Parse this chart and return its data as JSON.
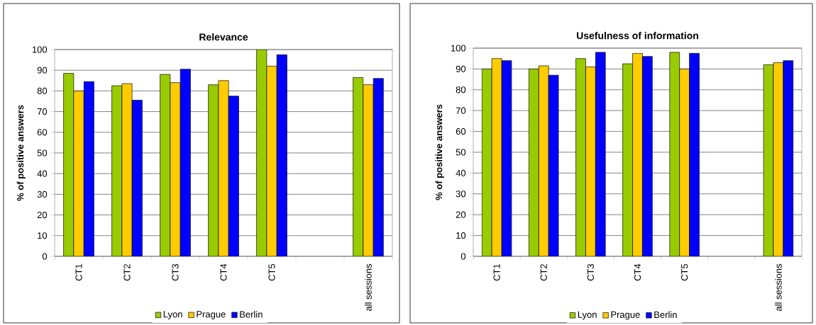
{
  "chart_data": [
    {
      "type": "bar",
      "title": "Relevance",
      "ylabel": "% of positive answers",
      "categories": [
        "CT1",
        "CT2",
        "CT3",
        "CT4",
        "CT5",
        null,
        "all sessions"
      ],
      "series": [
        {
          "name": "Lyon",
          "color": "#99cc00",
          "values": [
            88.5,
            82.5,
            88,
            83,
            100,
            null,
            86.5
          ]
        },
        {
          "name": "Prague",
          "color": "#ffcc00",
          "values": [
            80,
            83.5,
            84,
            85,
            92,
            null,
            83
          ]
        },
        {
          "name": "Berlin",
          "color": "#0000ff",
          "values": [
            84.5,
            75.5,
            90.5,
            77.5,
            97.5,
            null,
            86
          ]
        }
      ],
      "ylim": [
        0,
        100
      ],
      "yticks": [
        0,
        10,
        20,
        30,
        40,
        50,
        60,
        70,
        80,
        90,
        100
      ],
      "grid": "y",
      "legend": "bottom"
    },
    {
      "type": "bar",
      "title": "Usefulness of information",
      "ylabel": "% of positive answers",
      "categories": [
        "CT1",
        "CT2",
        "CT3",
        "CT4",
        "CT5",
        null,
        "all sessions"
      ],
      "series": [
        {
          "name": "Lyon",
          "color": "#99cc00",
          "values": [
            90,
            90,
            95,
            92.5,
            98,
            null,
            92
          ]
        },
        {
          "name": "Prague",
          "color": "#ffcc00",
          "values": [
            95,
            91.5,
            91,
            97.5,
            90,
            null,
            93
          ]
        },
        {
          "name": "Berlin",
          "color": "#0000ff",
          "values": [
            94,
            87,
            98,
            96,
            97.5,
            null,
            94
          ]
        }
      ],
      "ylim": [
        0,
        100
      ],
      "yticks": [
        0,
        10,
        20,
        30,
        40,
        50,
        60,
        70,
        80,
        90,
        100
      ],
      "grid": "y",
      "legend": "bottom"
    }
  ]
}
